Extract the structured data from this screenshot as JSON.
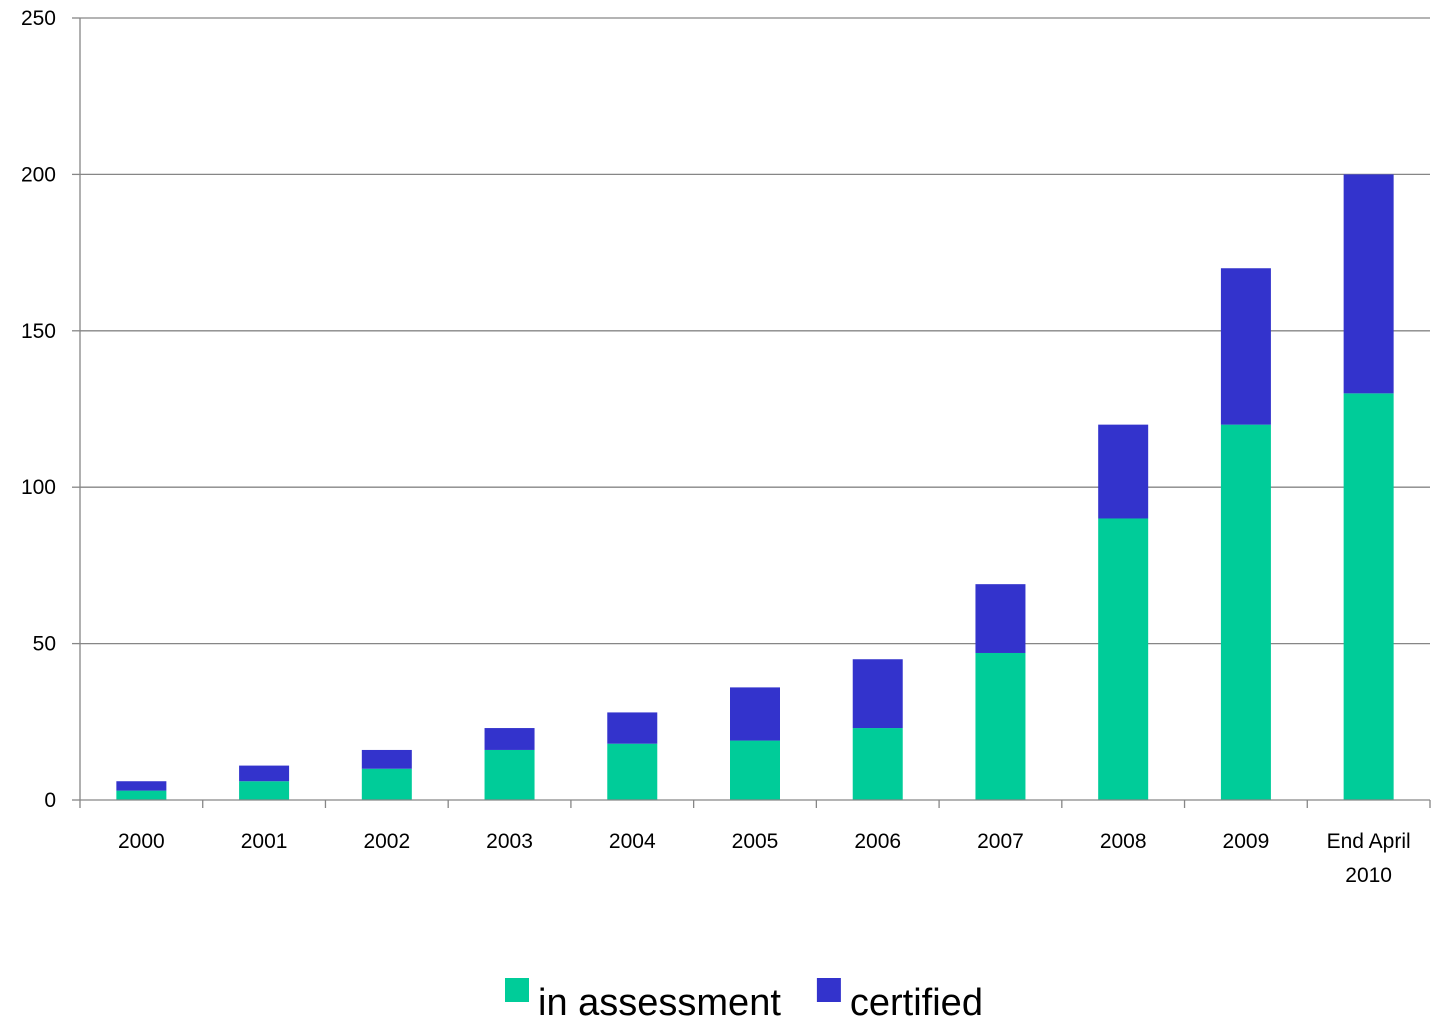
{
  "chart_data": {
    "type": "bar",
    "stacked": true,
    "categories": [
      [
        "2000"
      ],
      [
        "2001"
      ],
      [
        "2002"
      ],
      [
        "2003"
      ],
      [
        "2004"
      ],
      [
        "2005"
      ],
      [
        "2006"
      ],
      [
        "2007"
      ],
      [
        "2008"
      ],
      [
        "2009"
      ],
      [
        "End April",
        "2010"
      ]
    ],
    "series": [
      {
        "name": "in assessment",
        "color": "#00CC99",
        "values": [
          3,
          6,
          10,
          16,
          18,
          19,
          23,
          47,
          90,
          120,
          130
        ]
      },
      {
        "name": "certified",
        "color": "#3333CC",
        "values": [
          3,
          5,
          6,
          7,
          10,
          17,
          22,
          22,
          30,
          50,
          70
        ]
      }
    ],
    "y_ticks": [
      "0",
      "50",
      "100",
      "150",
      "200",
      "250"
    ],
    "ylim": [
      0,
      250
    ],
    "grid": true,
    "legend_position": "bottom",
    "gridline_color": "#868686",
    "axis_color": "#868686"
  }
}
